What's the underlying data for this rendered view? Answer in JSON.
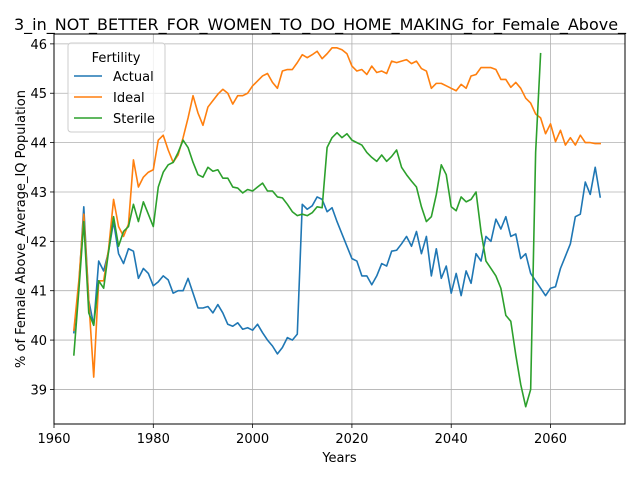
{
  "chart_data": {
    "type": "line",
    "title": "3_in_NOT_BETTER_FOR_WOMEN_TO_DO_HOME_MAKING_for_Female_Above_",
    "xlabel": "Years",
    "ylabel": "% of Female Above_Average_IQ Population",
    "xlim": [
      1960,
      2075
    ],
    "ylim": [
      38.3,
      46.2
    ],
    "xticks": [
      1960,
      1980,
      2000,
      2020,
      2040,
      2060
    ],
    "yticks": [
      39,
      40,
      41,
      42,
      43,
      44,
      45,
      46
    ],
    "grid": true,
    "legend": {
      "title": "Fertility",
      "placement": "top-left"
    },
    "series": [
      {
        "name": "Actual",
        "color": "#1f77b4",
        "x": [
          1964,
          1965,
          1966,
          1967,
          1968,
          1969,
          1970,
          1971,
          1972,
          1973,
          1974,
          1975,
          1976,
          1977,
          1978,
          1979,
          1980,
          1981,
          1982,
          1983,
          1984,
          1985,
          1986,
          1987,
          1988,
          1989,
          1990,
          1991,
          1992,
          1993,
          1994,
          1995,
          1996,
          1997,
          1998,
          1999,
          2000,
          2001,
          2002,
          2003,
          2004,
          2005,
          2006,
          2007,
          2008,
          2009,
          2010,
          2011,
          2012,
          2013,
          2014,
          2015,
          2016,
          2017,
          2018,
          2019,
          2020,
          2021,
          2022,
          2023,
          2024,
          2025,
          2026,
          2027,
          2028,
          2029,
          2030,
          2031,
          2032,
          2033,
          2034,
          2035,
          2036,
          2037,
          2038,
          2039,
          2040,
          2041,
          2042,
          2043,
          2044,
          2045,
          2046,
          2047,
          2048,
          2049,
          2050,
          2051,
          2052,
          2053,
          2054,
          2055,
          2056,
          2057,
          2058,
          2059,
          2060,
          2061,
          2062,
          2063,
          2064,
          2065,
          2066,
          2067,
          2068,
          2069,
          2070
        ],
        "values": [
          40.15,
          41.1,
          42.7,
          40.8,
          40.3,
          41.6,
          41.4,
          41.8,
          42.4,
          41.75,
          41.55,
          41.85,
          41.8,
          41.25,
          41.45,
          41.35,
          41.1,
          41.18,
          41.3,
          41.22,
          40.95,
          41.0,
          41.0,
          41.25,
          40.95,
          40.65,
          40.65,
          40.68,
          40.55,
          40.72,
          40.55,
          40.32,
          40.28,
          40.35,
          40.22,
          40.25,
          40.2,
          40.32,
          40.15,
          40.0,
          39.88,
          39.72,
          39.85,
          40.05,
          40.0,
          40.12,
          42.75,
          42.65,
          42.72,
          42.9,
          42.85,
          42.6,
          42.68,
          42.4,
          42.15,
          41.9,
          41.65,
          41.6,
          41.3,
          41.3,
          41.12,
          41.3,
          41.55,
          41.5,
          41.8,
          41.82,
          41.95,
          42.1,
          41.9,
          42.2,
          41.75,
          42.1,
          41.3,
          41.85,
          41.25,
          41.5,
          40.95,
          41.35,
          40.9,
          41.4,
          41.15,
          41.75,
          41.6,
          42.1,
          42.0,
          42.45,
          42.25,
          42.5,
          42.1,
          42.15,
          41.65,
          41.75,
          41.35,
          41.2,
          41.05,
          40.9,
          41.05,
          41.08,
          41.45,
          41.7,
          41.95,
          42.5,
          42.55,
          43.2,
          42.95,
          43.5,
          42.9
        ]
      },
      {
        "name": "Ideal",
        "color": "#ff7f0e",
        "x": [
          1964,
          1965,
          1966,
          1967,
          1968,
          1969,
          1970,
          1971,
          1972,
          1973,
          1974,
          1975,
          1976,
          1977,
          1978,
          1979,
          1980,
          1981,
          1982,
          1983,
          1984,
          1985,
          1986,
          1987,
          1988,
          1989,
          1990,
          1991,
          1992,
          1993,
          1994,
          1995,
          1996,
          1997,
          1998,
          1999,
          2000,
          2001,
          2002,
          2003,
          2004,
          2005,
          2006,
          2007,
          2008,
          2009,
          2010,
          2011,
          2012,
          2013,
          2014,
          2015,
          2016,
          2017,
          2018,
          2019,
          2020,
          2021,
          2022,
          2023,
          2024,
          2025,
          2026,
          2027,
          2028,
          2029,
          2030,
          2031,
          2032,
          2033,
          2034,
          2035,
          2036,
          2037,
          2038,
          2039,
          2040,
          2041,
          2042,
          2043,
          2044,
          2045,
          2046,
          2047,
          2048,
          2049,
          2050,
          2051,
          2052,
          2053,
          2054,
          2055,
          2056,
          2057,
          2058,
          2059,
          2060,
          2061,
          2062,
          2063,
          2064,
          2065,
          2066,
          2067,
          2068,
          2069,
          2070
        ],
        "values": [
          40.2,
          41.2,
          42.55,
          40.8,
          39.25,
          41.2,
          41.2,
          41.85,
          42.85,
          42.3,
          42.1,
          42.35,
          43.65,
          43.1,
          43.3,
          43.4,
          43.45,
          44.05,
          44.15,
          43.85,
          43.6,
          43.75,
          44.1,
          44.5,
          44.95,
          44.6,
          44.35,
          44.72,
          44.85,
          44.98,
          45.08,
          45.0,
          44.78,
          44.95,
          44.95,
          45.0,
          45.15,
          45.25,
          45.35,
          45.4,
          45.22,
          45.1,
          45.45,
          45.48,
          45.48,
          45.62,
          45.78,
          45.72,
          45.78,
          45.85,
          45.7,
          45.8,
          45.92,
          45.92,
          45.88,
          45.8,
          45.55,
          45.45,
          45.48,
          45.38,
          45.55,
          45.42,
          45.45,
          45.4,
          45.65,
          45.62,
          45.65,
          45.68,
          45.6,
          45.65,
          45.5,
          45.45,
          45.1,
          45.2,
          45.2,
          45.15,
          45.1,
          45.05,
          45.18,
          45.1,
          45.35,
          45.38,
          45.52,
          45.52,
          45.52,
          45.48,
          45.28,
          45.28,
          45.12,
          45.22,
          45.1,
          44.9,
          44.8,
          44.58,
          44.5,
          44.18,
          44.38,
          44.02,
          44.25,
          43.95,
          44.1,
          43.95,
          44.15,
          44.0,
          44.0,
          43.98,
          43.98
        ]
      },
      {
        "name": "Sterile",
        "color": "#2ca02c",
        "x": [
          1964,
          1965,
          1966,
          1967,
          1968,
          1969,
          1970,
          1971,
          1972,
          1973,
          1974,
          1975,
          1976,
          1977,
          1978,
          1979,
          1980,
          1981,
          1982,
          1983,
          1984,
          1985,
          1986,
          1987,
          1988,
          1989,
          1990,
          1991,
          1992,
          1993,
          1994,
          1995,
          1996,
          1997,
          1998,
          1999,
          2000,
          2001,
          2002,
          2003,
          2004,
          2005,
          2006,
          2007,
          2008,
          2009,
          2010,
          2011,
          2012,
          2013,
          2014,
          2015,
          2016,
          2017,
          2018,
          2019,
          2020,
          2021,
          2022,
          2023,
          2024,
          2025,
          2026,
          2027,
          2028,
          2029,
          2030,
          2031,
          2032,
          2033,
          2034,
          2035,
          2036,
          2037,
          2038,
          2039,
          2040,
          2041,
          2042,
          2043,
          2044,
          2045,
          2046,
          2047,
          2048,
          2049,
          2050,
          2051,
          2052,
          2053,
          2054,
          2055,
          2056,
          2057,
          2058
        ],
        "values": [
          39.7,
          41.0,
          42.4,
          40.55,
          40.3,
          41.2,
          41.05,
          41.8,
          42.5,
          41.9,
          42.2,
          42.3,
          42.75,
          42.4,
          42.8,
          42.55,
          42.3,
          43.1,
          43.4,
          43.55,
          43.6,
          43.8,
          44.05,
          43.9,
          43.6,
          43.35,
          43.3,
          43.5,
          43.42,
          43.45,
          43.28,
          43.28,
          43.1,
          43.08,
          42.98,
          43.05,
          43.02,
          43.1,
          43.18,
          43.02,
          43.02,
          42.9,
          42.88,
          42.75,
          42.6,
          42.52,
          42.55,
          42.52,
          42.58,
          42.7,
          42.68,
          43.9,
          44.1,
          44.2,
          44.1,
          44.18,
          44.05,
          44.0,
          43.95,
          43.8,
          43.7,
          43.62,
          43.75,
          43.62,
          43.72,
          43.85,
          43.5,
          43.35,
          43.22,
          43.1,
          42.7,
          42.4,
          42.5,
          42.95,
          43.55,
          43.35,
          42.7,
          42.62,
          42.9,
          42.8,
          42.85,
          43.0,
          42.2,
          41.6,
          41.45,
          41.3,
          41.05,
          40.5,
          40.38,
          39.7,
          39.1,
          38.65,
          39.0,
          43.8,
          45.8
        ]
      }
    ]
  }
}
